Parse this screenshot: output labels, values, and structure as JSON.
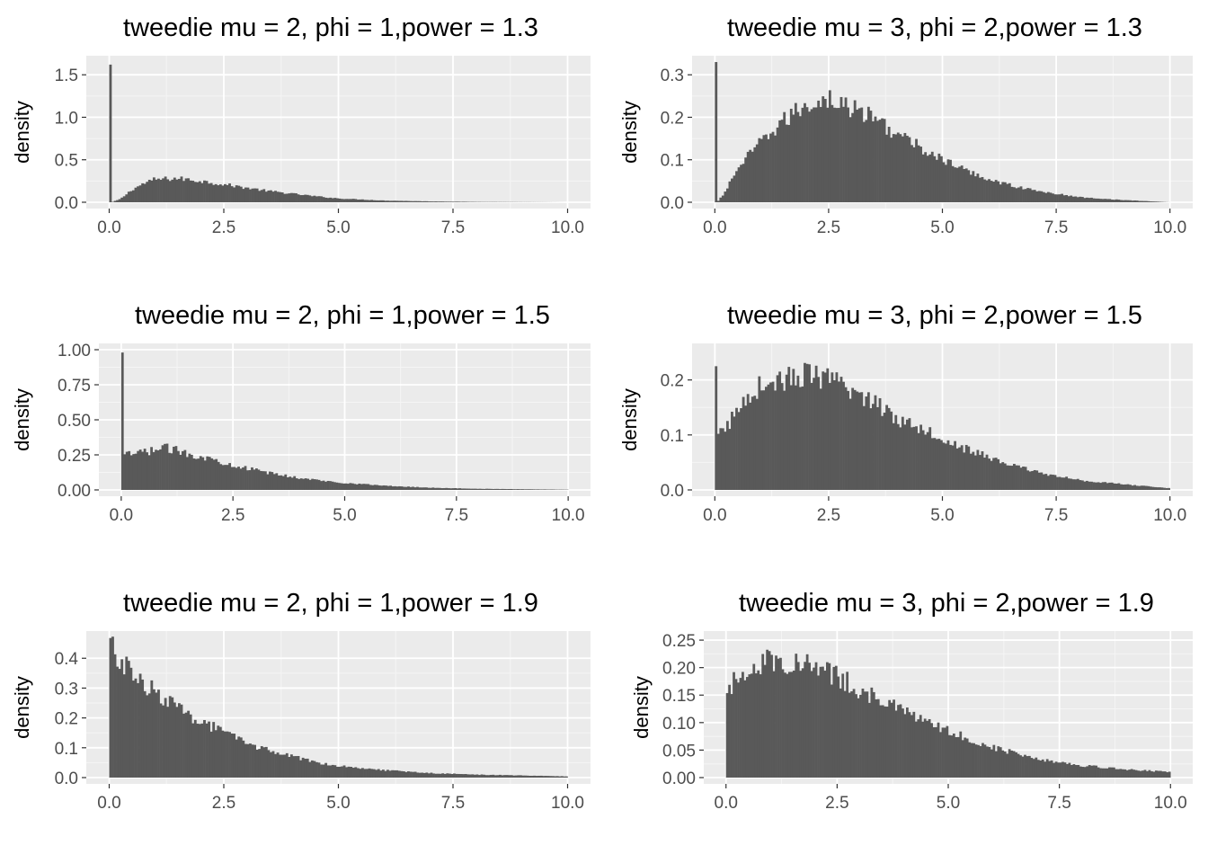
{
  "figure": {
    "colors": {
      "panel": "#ebebeb",
      "grid_major": "#ffffff",
      "bars": "#595959",
      "tick_text": "#4d4d4d"
    }
  },
  "chart_data": [
    {
      "type": "bar",
      "title": "tweedie mu = 2, phi = 1,power = 1.3",
      "xlabel": "",
      "ylabel": "density",
      "xlim": [
        0,
        10
      ],
      "ylim": [
        0,
        1.65
      ],
      "x_ticks": [
        "0.0",
        "2.5",
        "5.0",
        "7.5",
        "10.0"
      ],
      "x_tick_values": [
        0,
        2.5,
        5,
        7.5,
        10
      ],
      "y_ticks": [
        "0.0",
        "0.5",
        "1.0",
        "1.5"
      ],
      "y_tick_values": [
        0,
        0.5,
        1.0,
        1.5
      ],
      "grid": true,
      "bin_width": 0.05,
      "point_mass_at_zero": 1.62,
      "curve": [
        [
          0.05,
          0.0
        ],
        [
          0.25,
          0.04
        ],
        [
          0.5,
          0.15
        ],
        [
          0.75,
          0.22
        ],
        [
          1.0,
          0.27
        ],
        [
          1.5,
          0.28
        ],
        [
          2.0,
          0.25
        ],
        [
          2.5,
          0.21
        ],
        [
          3.0,
          0.17
        ],
        [
          3.5,
          0.13
        ],
        [
          4.0,
          0.1
        ],
        [
          4.5,
          0.07
        ],
        [
          5.0,
          0.045
        ],
        [
          6.0,
          0.02
        ],
        [
          7.0,
          0.01
        ],
        [
          8.0,
          0.004
        ],
        [
          10.0,
          0.0
        ]
      ]
    },
    {
      "type": "bar",
      "title": "tweedie mu = 3, phi = 2,power = 1.3",
      "xlabel": "",
      "ylabel": "density",
      "xlim": [
        0,
        10
      ],
      "ylim": [
        0,
        0.33
      ],
      "x_ticks": [
        "0.0",
        "2.5",
        "5.0",
        "7.5",
        "10.0"
      ],
      "x_tick_values": [
        0,
        2.5,
        5,
        7.5,
        10
      ],
      "y_ticks": [
        "0.0",
        "0.1",
        "0.2",
        "0.3"
      ],
      "y_tick_values": [
        0,
        0.1,
        0.2,
        0.3
      ],
      "grid": true,
      "bin_width": 0.05,
      "point_mass_at_zero": 0.33,
      "curve": [
        [
          0.05,
          0.0
        ],
        [
          0.2,
          0.02
        ],
        [
          0.5,
          0.08
        ],
        [
          1.0,
          0.14
        ],
        [
          1.5,
          0.19
        ],
        [
          2.0,
          0.23
        ],
        [
          2.5,
          0.245
        ],
        [
          3.0,
          0.22
        ],
        [
          3.5,
          0.2
        ],
        [
          4.0,
          0.16
        ],
        [
          4.5,
          0.13
        ],
        [
          5.0,
          0.1
        ],
        [
          5.5,
          0.075
        ],
        [
          6.0,
          0.055
        ],
        [
          6.5,
          0.04
        ],
        [
          7.0,
          0.028
        ],
        [
          7.5,
          0.02
        ],
        [
          8.0,
          0.012
        ],
        [
          9.0,
          0.005
        ],
        [
          10.0,
          0.0
        ]
      ]
    },
    {
      "type": "bar",
      "title": "tweedie mu = 2, phi = 1,power = 1.5",
      "xlabel": "",
      "ylabel": "density",
      "xlim": [
        0,
        10
      ],
      "ylim": [
        0,
        1.0
      ],
      "x_ticks": [
        "0.0",
        "2.5",
        "5.0",
        "7.5",
        "10.0"
      ],
      "x_tick_values": [
        0,
        2.5,
        5,
        7.5,
        10
      ],
      "y_ticks": [
        "0.00",
        "0.25",
        "0.50",
        "0.75",
        "1.00"
      ],
      "y_tick_values": [
        0,
        0.25,
        0.5,
        0.75,
        1.0
      ],
      "grid": true,
      "bin_width": 0.05,
      "point_mass_at_zero": 0.98,
      "curve": [
        [
          0.0,
          0.24
        ],
        [
          0.5,
          0.27
        ],
        [
          1.0,
          0.3
        ],
        [
          1.5,
          0.26
        ],
        [
          2.0,
          0.22
        ],
        [
          2.5,
          0.18
        ],
        [
          3.0,
          0.14
        ],
        [
          3.5,
          0.11
        ],
        [
          4.0,
          0.085
        ],
        [
          4.5,
          0.065
        ],
        [
          5.0,
          0.05
        ],
        [
          6.0,
          0.028
        ],
        [
          7.0,
          0.015
        ],
        [
          8.0,
          0.008
        ],
        [
          10.0,
          0.002
        ]
      ]
    },
    {
      "type": "bar",
      "title": "tweedie mu = 3, phi = 2,power = 1.5",
      "xlabel": "",
      "ylabel": "density",
      "xlim": [
        0,
        10
      ],
      "ylim": [
        0,
        0.255
      ],
      "x_ticks": [
        "0.0",
        "2.5",
        "5.0",
        "7.5",
        "10.0"
      ],
      "x_tick_values": [
        0,
        2.5,
        5,
        7.5,
        10
      ],
      "y_ticks": [
        "0.0",
        "0.1",
        "0.2"
      ],
      "y_tick_values": [
        0,
        0.1,
        0.2
      ],
      "grid": true,
      "bin_width": 0.05,
      "point_mass_at_zero": 0.225,
      "curve": [
        [
          0.0,
          0.09
        ],
        [
          0.3,
          0.12
        ],
        [
          0.7,
          0.17
        ],
        [
          1.0,
          0.19
        ],
        [
          1.5,
          0.2
        ],
        [
          2.0,
          0.21
        ],
        [
          2.5,
          0.2
        ],
        [
          3.0,
          0.18
        ],
        [
          3.5,
          0.16
        ],
        [
          4.0,
          0.13
        ],
        [
          4.5,
          0.115
        ],
        [
          5.0,
          0.095
        ],
        [
          5.5,
          0.075
        ],
        [
          6.0,
          0.06
        ],
        [
          6.5,
          0.045
        ],
        [
          7.0,
          0.035
        ],
        [
          7.5,
          0.025
        ],
        [
          8.0,
          0.018
        ],
        [
          9.0,
          0.01
        ],
        [
          10.0,
          0.003
        ]
      ]
    },
    {
      "type": "bar",
      "title": "tweedie mu = 2, phi = 1,power = 1.9",
      "xlabel": "",
      "ylabel": "density",
      "xlim": [
        0,
        10
      ],
      "ylim": [
        0,
        0.47
      ],
      "x_ticks": [
        "0.0",
        "2.5",
        "5.0",
        "7.5",
        "10.0"
      ],
      "x_tick_values": [
        0,
        2.5,
        5,
        7.5,
        10
      ],
      "y_ticks": [
        "0.0",
        "0.1",
        "0.2",
        "0.3",
        "0.4"
      ],
      "y_tick_values": [
        0,
        0.1,
        0.2,
        0.3,
        0.4
      ],
      "grid": true,
      "bin_width": 0.05,
      "point_mass_at_zero": null,
      "curve": [
        [
          0.0,
          0.45
        ],
        [
          0.3,
          0.38
        ],
        [
          0.6,
          0.33
        ],
        [
          1.0,
          0.29
        ],
        [
          1.5,
          0.23
        ],
        [
          2.0,
          0.19
        ],
        [
          2.5,
          0.15
        ],
        [
          3.0,
          0.115
        ],
        [
          3.5,
          0.09
        ],
        [
          4.0,
          0.07
        ],
        [
          4.5,
          0.052
        ],
        [
          5.0,
          0.04
        ],
        [
          6.0,
          0.025
        ],
        [
          7.0,
          0.015
        ],
        [
          8.0,
          0.01
        ],
        [
          9.0,
          0.007
        ],
        [
          10.0,
          0.004
        ]
      ]
    },
    {
      "type": "bar",
      "title": "tweedie mu = 3, phi = 2,power = 1.9",
      "xlabel": "",
      "ylabel": "density",
      "xlim": [
        0,
        10
      ],
      "ylim": [
        0,
        0.255
      ],
      "x_ticks": [
        "0.0",
        "2.5",
        "5.0",
        "7.5",
        "10.0"
      ],
      "x_tick_values": [
        0,
        2.5,
        5,
        7.5,
        10
      ],
      "y_ticks": [
        "0.00",
        "0.05",
        "0.10",
        "0.15",
        "0.20",
        "0.25"
      ],
      "y_tick_values": [
        0,
        0.05,
        0.1,
        0.15,
        0.2,
        0.25
      ],
      "grid": true,
      "bin_width": 0.05,
      "point_mass_at_zero": null,
      "curve": [
        [
          0.0,
          0.14
        ],
        [
          0.2,
          0.18
        ],
        [
          0.5,
          0.2
        ],
        [
          1.0,
          0.215
        ],
        [
          1.5,
          0.21
        ],
        [
          2.0,
          0.2
        ],
        [
          2.5,
          0.185
        ],
        [
          3.0,
          0.16
        ],
        [
          3.5,
          0.14
        ],
        [
          4.0,
          0.12
        ],
        [
          4.5,
          0.1
        ],
        [
          5.0,
          0.085
        ],
        [
          5.5,
          0.07
        ],
        [
          6.0,
          0.055
        ],
        [
          6.5,
          0.045
        ],
        [
          7.0,
          0.035
        ],
        [
          7.5,
          0.028
        ],
        [
          8.0,
          0.022
        ],
        [
          9.0,
          0.015
        ],
        [
          10.0,
          0.01
        ]
      ]
    }
  ]
}
